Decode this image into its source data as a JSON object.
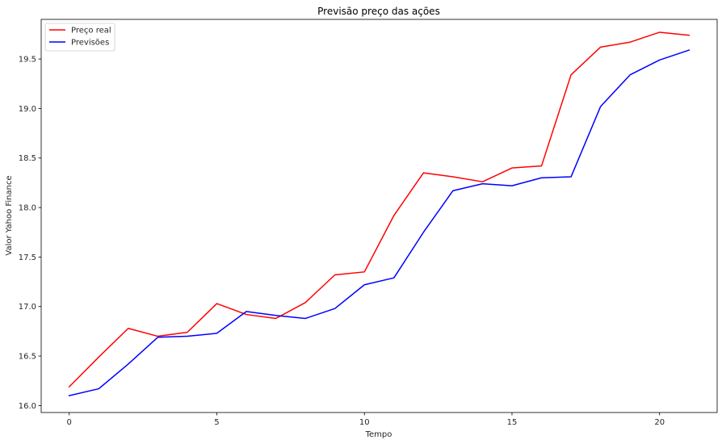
{
  "chart_data": {
    "type": "line",
    "title": "Previsão preço das ações",
    "xlabel": "Tempo",
    "ylabel": "Valor Yahoo Finance",
    "xlim": [
      -0.95,
      21.95
    ],
    "ylim": [
      15.93,
      19.9
    ],
    "x_ticks": [
      0,
      5,
      10,
      15,
      20
    ],
    "y_ticks": [
      16.0,
      16.5,
      17.0,
      17.5,
      18.0,
      18.5,
      19.0,
      19.5
    ],
    "x_tick_labels": [
      "0",
      "5",
      "10",
      "15",
      "20"
    ],
    "y_tick_labels": [
      "16.0",
      "16.5",
      "17.0",
      "17.5",
      "18.0",
      "18.5",
      "19.0",
      "19.5"
    ],
    "grid": false,
    "legend_position": "upper-left",
    "x": [
      0,
      1,
      2,
      3,
      4,
      5,
      6,
      7,
      8,
      9,
      10,
      11,
      12,
      13,
      14,
      15,
      16,
      17,
      18,
      19,
      20,
      21
    ],
    "series": [
      {
        "name": "Preço real",
        "color": "#ff0000",
        "values": [
          16.19,
          16.49,
          16.78,
          16.7,
          16.74,
          17.03,
          16.92,
          16.88,
          17.04,
          17.32,
          17.35,
          17.92,
          18.35,
          18.31,
          18.26,
          18.4,
          18.42,
          19.34,
          19.62,
          19.67,
          19.77,
          19.74
        ]
      },
      {
        "name": "Previsões",
        "color": "#0000ff",
        "values": [
          16.1,
          16.17,
          16.42,
          16.69,
          16.7,
          16.73,
          16.95,
          16.91,
          16.88,
          16.98,
          17.22,
          17.29,
          17.75,
          18.17,
          18.24,
          18.22,
          18.3,
          18.31,
          19.02,
          19.34,
          19.49,
          19.59
        ]
      }
    ]
  }
}
